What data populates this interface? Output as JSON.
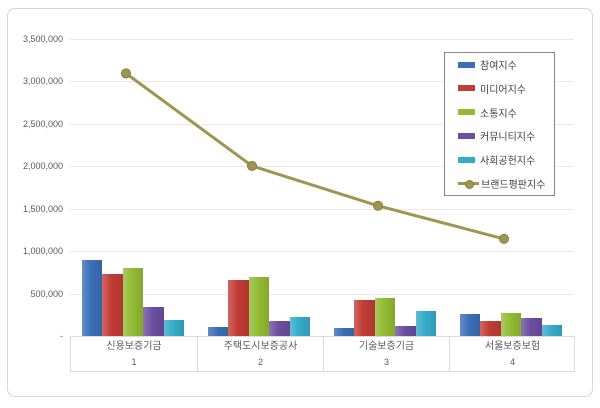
{
  "chart_data": {
    "type": "bar",
    "title": "",
    "categories": [
      "신용보증기금",
      "주택도시보증공사",
      "기술보증기금",
      "서울보증보험"
    ],
    "category_ranks": [
      "1",
      "2",
      "3",
      "4"
    ],
    "series": [
      {
        "id": "participation",
        "name": "참여지수",
        "type": "bar",
        "color": "#3a6fb7",
        "values": [
          890000,
          110000,
          100000,
          260000
        ]
      },
      {
        "id": "media",
        "name": "미디어지수",
        "type": "bar",
        "color": "#c23b35",
        "values": [
          730000,
          660000,
          420000,
          180000
        ]
      },
      {
        "id": "communication",
        "name": "소통지수",
        "type": "bar",
        "color": "#93bb33",
        "values": [
          800000,
          690000,
          450000,
          270000
        ]
      },
      {
        "id": "community",
        "name": "커뮤니티지수",
        "type": "bar",
        "color": "#6c4ea0",
        "values": [
          340000,
          180000,
          120000,
          210000
        ]
      },
      {
        "id": "social-contribution",
        "name": "사회공헌지수",
        "type": "bar",
        "color": "#35abcb",
        "values": [
          190000,
          220000,
          290000,
          130000
        ]
      },
      {
        "id": "brand-reputation",
        "name": "브랜드평판지수",
        "type": "line",
        "color": "#9e9550",
        "marker_stroke": "#857d3e",
        "values": [
          3000000,
          1910000,
          1440000,
          1050000
        ]
      }
    ],
    "ylim": [
      0,
      3500000
    ],
    "ytick_step": 500000,
    "ytick_labels": [
      "-",
      "500,000",
      "1,000,000",
      "1,500,000",
      "2,000,000",
      "2,500,000",
      "3,000,000",
      "3,500,000"
    ],
    "grid": true,
    "legend_position": "upper-right"
  }
}
